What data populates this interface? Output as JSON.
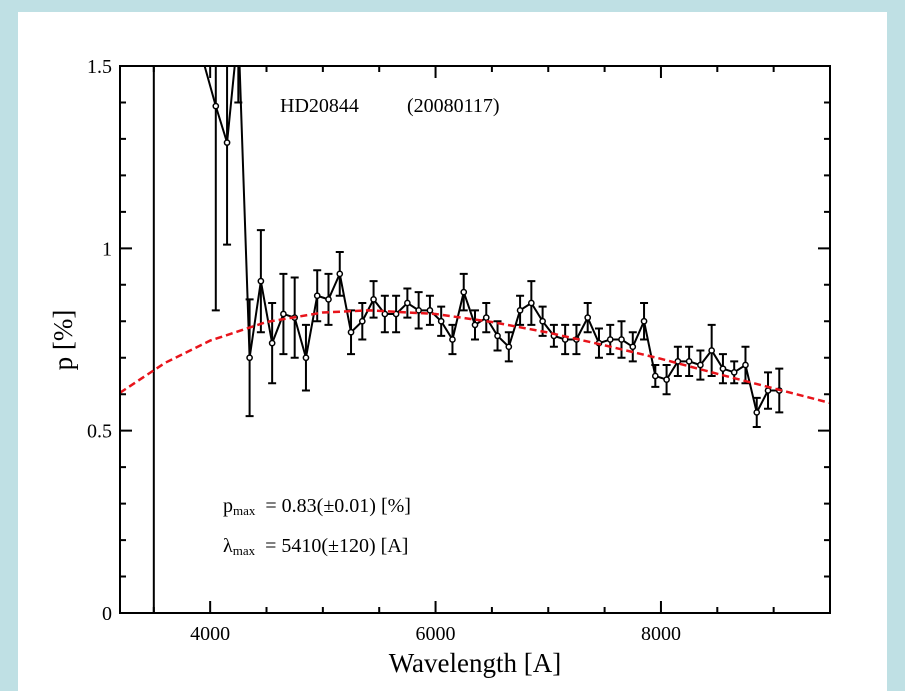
{
  "chart_data": {
    "type": "errorbar-line",
    "annotations": [
      "HD20844",
      "(20080117)"
    ],
    "fit_labels": [
      {
        "symbol": "p",
        "sub": "max",
        "text": "=  0.83(±0.01)  [%]"
      },
      {
        "symbol": "λ",
        "sub": "max",
        "text": "=  5410(±120)  [A]"
      }
    ],
    "xlabel": "Wavelength  [A]",
    "ylabel": "p  [%]",
    "xlim": [
      3200,
      9500
    ],
    "ylim": [
      0,
      1.5
    ],
    "xticks": [
      4000,
      6000,
      8000
    ],
    "yticks": [
      0,
      0.5,
      1,
      1.5
    ],
    "xminorticks": [
      3500,
      4500,
      5000,
      5500,
      6500,
      7000,
      7500,
      8500,
      9000
    ],
    "yminorticks": [
      0.1,
      0.2,
      0.3,
      0.4,
      0.6,
      0.7,
      0.8,
      0.9,
      1.1,
      1.2,
      1.3,
      1.4
    ],
    "series": [
      {
        "color": "#000000",
        "style": "solid",
        "markers": true,
        "x": [
          3500,
          4050,
          4150,
          4250,
          4350,
          4450,
          4550,
          4650,
          4750,
          4850,
          4950,
          5050,
          5150,
          5250,
          5350,
          5450,
          5550,
          5650,
          5750,
          5850,
          5950,
          6050,
          6150,
          6250,
          6350,
          6450,
          6550,
          6650,
          6750,
          6850,
          6950,
          7050,
          7150,
          7250,
          7350,
          7450,
          7550,
          7650,
          7750,
          7850,
          7950,
          8050,
          8150,
          8250,
          8350,
          8450,
          8550,
          8650,
          8750,
          8850,
          8950,
          9050
        ],
        "values": [
          2,
          1.39,
          1.29,
          1.6,
          0.7,
          0.91,
          0.74,
          0.82,
          0.81,
          0.7,
          0.87,
          0.86,
          0.93,
          0.77,
          0.8,
          0.86,
          0.82,
          0.82,
          0.85,
          0.83,
          0.83,
          0.8,
          0.75,
          0.88,
          0.79,
          0.81,
          0.76,
          0.73,
          0.83,
          0.85,
          0.8,
          0.76,
          0.75,
          0.75,
          0.81,
          0.74,
          0.75,
          0.75,
          0.73,
          0.8,
          0.65,
          0.64,
          0.69,
          0.69,
          0.68,
          0.72,
          0.67,
          0.66,
          0.68,
          0.55,
          0.61,
          0.61
        ],
        "errors": [
          2,
          0.56,
          0.28,
          0.2,
          0.16,
          0.14,
          0.11,
          0.11,
          0.11,
          0.09,
          0.07,
          0.07,
          0.06,
          0.06,
          0.05,
          0.05,
          0.05,
          0.05,
          0.04,
          0.05,
          0.04,
          0.04,
          0.04,
          0.05,
          0.04,
          0.04,
          0.04,
          0.04,
          0.04,
          0.06,
          0.04,
          0.03,
          0.04,
          0.04,
          0.04,
          0.04,
          0.04,
          0.05,
          0.04,
          0.05,
          0.03,
          0.04,
          0.04,
          0.04,
          0.04,
          0.07,
          0.04,
          0.03,
          0.05,
          0.04,
          0.05,
          0.06
        ]
      },
      {
        "color": "#e8141b",
        "style": "dashed",
        "markers": false,
        "x": [
          3200,
          3600,
          4000,
          4500,
          5000,
          5410,
          6000,
          6500,
          7000,
          7500,
          8000,
          8500,
          9000,
          9500
        ],
        "values": [
          0.604,
          0.686,
          0.747,
          0.798,
          0.824,
          0.83,
          0.82,
          0.798,
          0.769,
          0.734,
          0.697,
          0.656,
          0.616,
          0.576
        ]
      }
    ]
  }
}
